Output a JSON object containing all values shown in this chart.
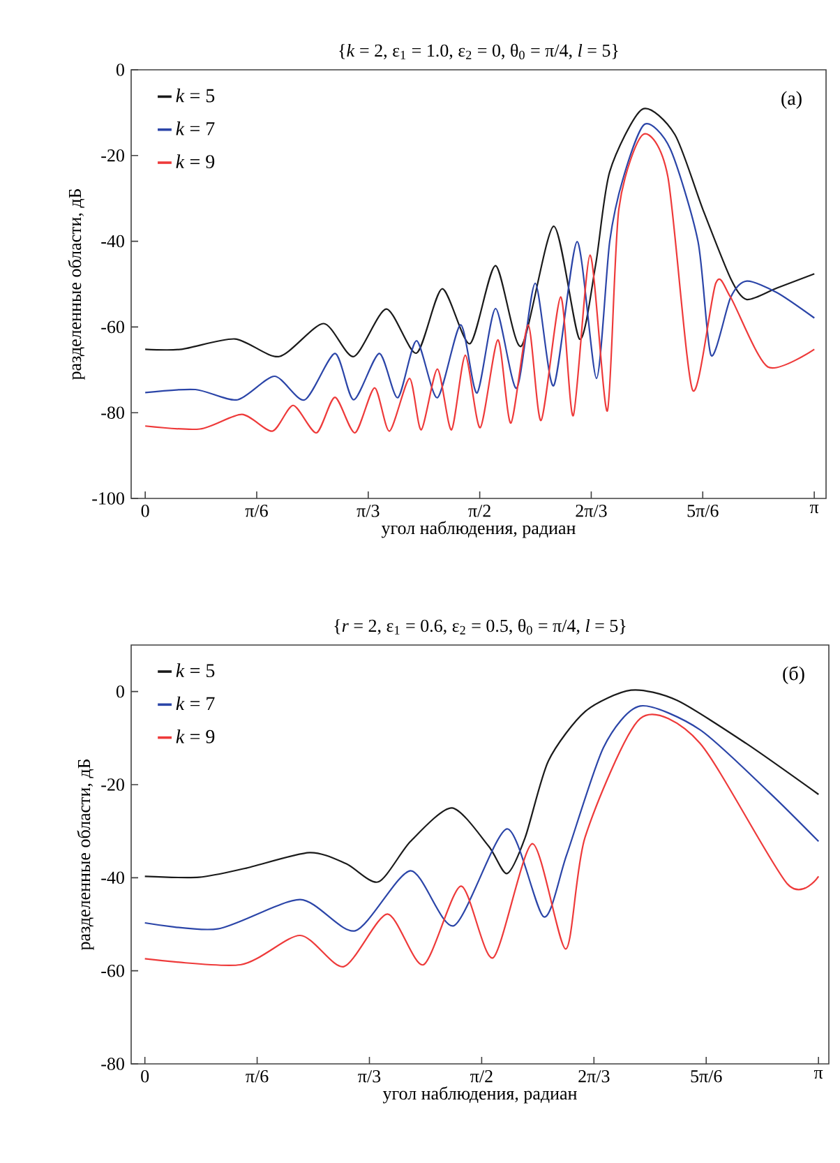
{
  "chart_data": [
    {
      "type": "line",
      "title": "{*k* = 2, ε$_{1}$ = 1.0, ε$_{2}$ = 0, θ$_{0}$ = π/4, *l* = 5}",
      "xlabel": "угол наблюдения, радиан",
      "ylabel": "разделенные области, дБ",
      "annotations": [
        "(a)"
      ],
      "legend": "top left",
      "xlim": [
        -0.066,
        3.197
      ],
      "ylim": [
        -100,
        0
      ],
      "xticks": [
        {
          "value": 0,
          "label": "0"
        },
        {
          "value": 0.5236,
          "label": "π/6"
        },
        {
          "value": 1.0472,
          "label": "π/3"
        },
        {
          "value": 1.5708,
          "label": "π/2"
        },
        {
          "value": 2.0944,
          "label": "2π/3"
        },
        {
          "value": 2.618,
          "label": "5π/6"
        },
        {
          "value": 3.1416,
          "label": "π"
        }
      ],
      "yticks": [
        -100,
        -80,
        -60,
        -40,
        -20,
        0
      ],
      "series": [
        {
          "name": "*k* = 5",
          "color": "#1a1a1a",
          "x": [
            0,
            0.17,
            0.422,
            0.629,
            0.837,
            0.979,
            1.132,
            1.274,
            1.394,
            1.525,
            1.645,
            1.765,
            1.918,
            2.039,
            2.115,
            2.181,
            2.334,
            2.487,
            2.618,
            2.749,
            2.825,
            2.967,
            3.142
          ],
          "values": [
            -65.2,
            -65.2,
            -62.8,
            -66.9,
            -59.2,
            -66.9,
            -55.8,
            -66.1,
            -51.1,
            -63.9,
            -45.7,
            -64.5,
            -36.5,
            -62.8,
            -45.5,
            -23.8,
            -9.2,
            -15.1,
            -32.5,
            -48.7,
            -53.6,
            -50.9,
            -47.6
          ]
        },
        {
          "name": "*k* = 7",
          "color": "#2b45a8",
          "x": [
            0,
            0.236,
            0.433,
            0.607,
            0.749,
            0.891,
            0.979,
            1.099,
            1.186,
            1.274,
            1.372,
            1.481,
            1.558,
            1.645,
            1.744,
            1.831,
            1.918,
            2.028,
            2.119,
            2.181,
            2.246,
            2.345,
            2.465,
            2.596,
            2.657,
            2.749,
            2.825,
            2.967,
            3.142
          ],
          "values": [
            -75.3,
            -74.6,
            -77.0,
            -71.5,
            -77.0,
            -66.2,
            -77.0,
            -66.2,
            -76.5,
            -63.2,
            -76.5,
            -59.5,
            -75.4,
            -55.7,
            -74.3,
            -49.8,
            -73.7,
            -40.1,
            -72.0,
            -40.1,
            -25.0,
            -12.7,
            -18.4,
            -40.1,
            -66.6,
            -53.1,
            -49.3,
            -52.0,
            -57.9
          ]
        },
        {
          "name": "*k* = 9",
          "color": "#ee3a3a",
          "x": [
            0,
            0.258,
            0.454,
            0.597,
            0.695,
            0.804,
            0.891,
            0.985,
            1.077,
            1.147,
            1.241,
            1.296,
            1.372,
            1.438,
            1.503,
            1.573,
            1.656,
            1.717,
            1.798,
            1.859,
            1.951,
            2.01,
            2.089,
            2.17,
            2.224,
            2.338,
            2.454,
            2.57,
            2.679,
            2.749,
            2.923,
            3.142
          ],
          "values": [
            -83.1,
            -83.8,
            -80.4,
            -84.3,
            -78.3,
            -84.7,
            -76.4,
            -84.7,
            -74.2,
            -84.3,
            -72.0,
            -84.0,
            -69.8,
            -84.0,
            -66.6,
            -83.5,
            -63.0,
            -82.4,
            -59.5,
            -81.8,
            -53.0,
            -80.7,
            -43.2,
            -79.6,
            -32.5,
            -15.1,
            -24.9,
            -74.7,
            -49.8,
            -53.1,
            -69.3,
            -65.2
          ]
        }
      ]
    },
    {
      "type": "line",
      "title": "{*r* = 2, ε$_{1}$ = 0.6, ε$_{2}$ = 0.5, θ$_{0}$ = π/4, *l* = 5}",
      "xlabel": "угол наблюдения, радиан",
      "ylabel": "разделенные области, дБ",
      "annotations": [
        "(б)"
      ],
      "legend": "top left",
      "xlim": [
        -0.064,
        3.19
      ],
      "ylim": [
        -80,
        10
      ],
      "xticks": [
        {
          "value": 0,
          "label": "0"
        },
        {
          "value": 0.5236,
          "label": "π/6"
        },
        {
          "value": 1.0472,
          "label": "π/3"
        },
        {
          "value": 1.5708,
          "label": "π/2"
        },
        {
          "value": 2.0944,
          "label": "2π/3"
        },
        {
          "value": 2.618,
          "label": "5π/6"
        },
        {
          "value": 3.1416,
          "label": "π"
        }
      ],
      "yticks": [
        -80,
        -60,
        -40,
        -20,
        0
      ],
      "series": [
        {
          "name": "*k* = 5",
          "color": "#1a1a1a",
          "x": [
            0,
            0.253,
            0.467,
            0.767,
            0.939,
            1.089,
            1.239,
            1.432,
            1.603,
            1.689,
            1.774,
            1.882,
            2.053,
            2.267,
            2.482,
            2.803,
            3.142
          ],
          "values": [
            -39.7,
            -39.9,
            -38.0,
            -34.6,
            -37.0,
            -40.9,
            -32.2,
            -25.0,
            -33.2,
            -39.1,
            -31.3,
            -14.9,
            -4.3,
            0.3,
            -1.9,
            -11.1,
            -22.1
          ]
        },
        {
          "name": "*k* = 7",
          "color": "#2b45a8",
          "x": [
            0,
            0.339,
            0.724,
            0.981,
            1.239,
            1.442,
            1.689,
            1.86,
            1.967,
            2.139,
            2.31,
            2.589,
            2.91,
            3.142
          ],
          "values": [
            -49.7,
            -51.0,
            -44.7,
            -51.4,
            -38.5,
            -50.3,
            -29.5,
            -48.4,
            -35.1,
            -12.0,
            -3.1,
            -8.2,
            -21.6,
            -32.2
          ]
        },
        {
          "name": "*k* = 9",
          "color": "#ee3a3a",
          "x": [
            0,
            0.446,
            0.724,
            0.928,
            1.131,
            1.299,
            1.474,
            1.624,
            1.807,
            1.963,
            2.053,
            2.31,
            2.589,
            2.996,
            3.142
          ],
          "values": [
            -57.4,
            -58.7,
            -52.4,
            -59.1,
            -47.8,
            -58.7,
            -41.8,
            -57.2,
            -32.7,
            -55.3,
            -31.3,
            -5.8,
            -11.1,
            -41.3,
            -39.7
          ]
        }
      ]
    }
  ]
}
